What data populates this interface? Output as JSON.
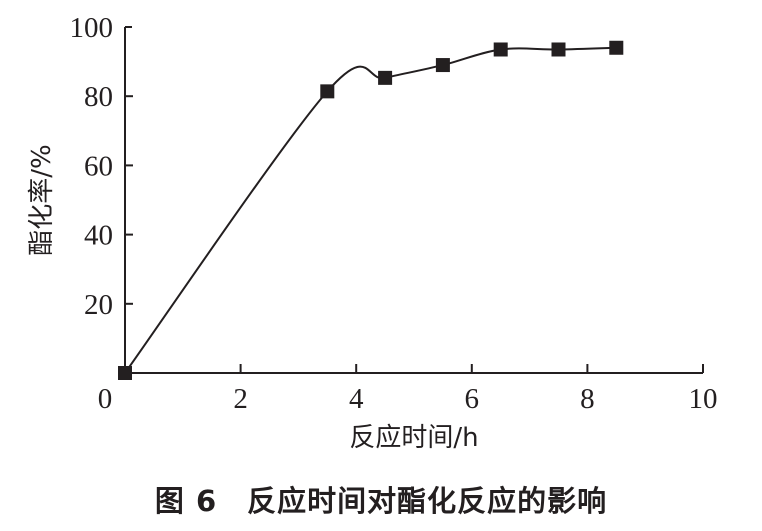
{
  "chart_data": {
    "type": "line",
    "x": [
      0,
      3.5,
      4.5,
      5.5,
      6.5,
      7.5,
      8.5
    ],
    "series": [
      {
        "values": [
          0,
          81.4,
          85.3,
          89.0,
          93.5,
          93.5,
          94.0
        ],
        "marker": "square",
        "color": "#231f20"
      }
    ],
    "xlabel": "反应时间/h",
    "ylabel": "酯化率/%",
    "xlim": [
      0,
      10
    ],
    "ylim": [
      0,
      100
    ],
    "xticks": [
      "0",
      "2",
      "4",
      "6",
      "8",
      "10"
    ],
    "yticks": [
      "20",
      "40",
      "60",
      "80",
      "100"
    ],
    "grid": false,
    "legend": "none"
  },
  "caption": "图 6　反应时间对酯化反应的影响"
}
